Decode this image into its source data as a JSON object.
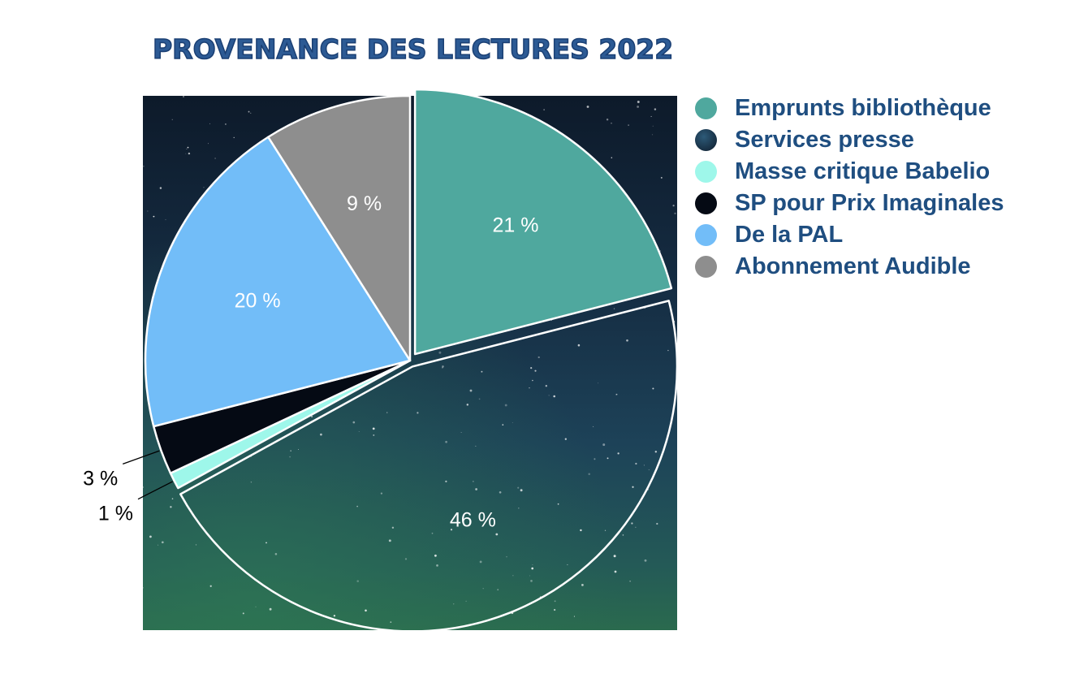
{
  "chart_data": {
    "type": "pie",
    "title": "Provenance des lectures 2022",
    "series": [
      {
        "name": "Emprunts bibliothèque",
        "value": 21,
        "label": "21 %",
        "color": "#4fa89e"
      },
      {
        "name": "Services presse",
        "value": 46,
        "label": "46 %",
        "color": "#1d3a55"
      },
      {
        "name": "Masse critique Babelio",
        "value": 1,
        "label": "1 %",
        "color": "#9ef7ea"
      },
      {
        "name": "SP pour Prix Imaginales",
        "value": 3,
        "label": "3 %",
        "color": "#050a14"
      },
      {
        "name": "De la PAL",
        "value": 20,
        "label": "20 %",
        "color": "#72bdf8"
      },
      {
        "name": "Abonnement Audible",
        "value": 9,
        "label": "9 %",
        "color": "#8e8e8e"
      }
    ],
    "legend_position": "right",
    "background_image": "starry-night-sky"
  }
}
